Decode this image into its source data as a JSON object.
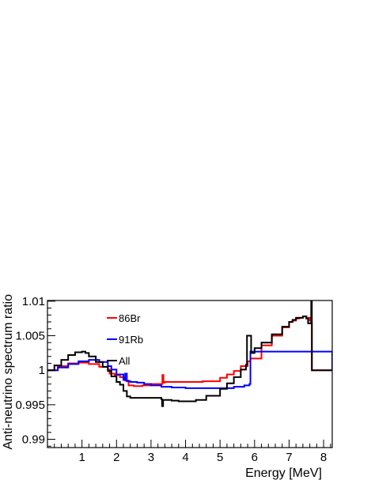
{
  "chart_data": {
    "type": "line",
    "title": "",
    "xlabel": "Energy [MeV]",
    "ylabel": "Anti-neutrino spectrum ratio",
    "xlim": [
      0,
      8.25
    ],
    "ylim": [
      0.9888,
      1.0101
    ],
    "x_ticks": [
      1,
      2,
      3,
      4,
      5,
      6,
      7,
      8
    ],
    "y_ticks": [
      0.99,
      0.995,
      1,
      1.005,
      1.01
    ],
    "x_tick_labels": [
      "1",
      "2",
      "3",
      "4",
      "5",
      "6",
      "7",
      "8"
    ],
    "y_tick_labels": [
      "0.99",
      "0.995",
      "1",
      "1.005",
      "1.01"
    ],
    "grid": false,
    "legend_position": "top-left",
    "series": [
      {
        "name": "86Br",
        "color": "#ff0000",
        "x": [
          0.0,
          0.3,
          0.6,
          0.9,
          1.2,
          1.5,
          1.75,
          1.8,
          1.95,
          2.1,
          2.25,
          2.35,
          2.5,
          2.75,
          3.0,
          3.3,
          3.33,
          3.36,
          3.4,
          3.6,
          4.0,
          4.5,
          5.0,
          5.2,
          5.4,
          5.6,
          5.8,
          5.88,
          5.92,
          6.2,
          6.5,
          6.8,
          7.0,
          7.1,
          7.2,
          7.3,
          7.4,
          7.5,
          7.6,
          7.65,
          7.66,
          8.25
        ],
        "y": [
          1.0,
          1.0006,
          1.001,
          1.0011,
          1.0009,
          1.0005,
          1.0001,
          0.9995,
          0.9993,
          0.999,
          0.9985,
          0.9978,
          0.9977,
          0.9978,
          0.998,
          0.998,
          0.9993,
          0.9982,
          0.9983,
          0.9983,
          0.9983,
          0.9984,
          0.9989,
          0.9994,
          0.9999,
          1.0006,
          1.0013,
          1.0017,
          1.0017,
          1.0036,
          1.005,
          1.0062,
          1.007,
          1.0072,
          1.0075,
          1.0076,
          1.0078,
          1.0076,
          1.0072,
          1.0068,
          1.0,
          1.0
        ]
      },
      {
        "name": "91Rb",
        "color": "#0000ff",
        "x": [
          0.0,
          0.3,
          0.6,
          0.9,
          1.2,
          1.5,
          1.75,
          1.85,
          2.0,
          2.2,
          2.25,
          2.3,
          2.4,
          2.6,
          2.8,
          3.0,
          3.3,
          3.6,
          4.0,
          4.5,
          5.0,
          5.4,
          5.7,
          5.85,
          5.88,
          8.25
        ],
        "y": [
          1.0,
          1.0004,
          1.0009,
          1.0013,
          1.0015,
          1.0012,
          1.0006,
          1.0001,
          0.9994,
          0.9986,
          0.9995,
          0.9984,
          0.9983,
          0.9982,
          0.998,
          0.9978,
          0.9976,
          0.9975,
          0.9974,
          0.9974,
          0.9974,
          0.9976,
          0.9978,
          0.998,
          1.0027,
          1.0
        ]
      },
      {
        "name": "All",
        "color": "#000000",
        "x": [
          0.0,
          0.2,
          0.4,
          0.6,
          0.8,
          1.0,
          1.1,
          1.2,
          1.4,
          1.6,
          1.75,
          1.85,
          2.0,
          2.1,
          2.2,
          2.3,
          2.4,
          2.6,
          3.0,
          3.3,
          3.32,
          3.35,
          3.4,
          3.6,
          3.8,
          4.0,
          4.3,
          4.6,
          5.0,
          5.2,
          5.4,
          5.6,
          5.75,
          5.78,
          5.87,
          5.9,
          6.0,
          6.2,
          6.5,
          6.8,
          7.0,
          7.1,
          7.2,
          7.3,
          7.4,
          7.5,
          7.55,
          7.62,
          7.64,
          7.66,
          8.25
        ],
        "y": [
          1.0,
          1.0007,
          1.0015,
          1.0022,
          1.0026,
          1.0027,
          1.0025,
          1.002,
          1.0012,
          1.0005,
          0.9999,
          0.9991,
          0.9983,
          0.9979,
          0.997,
          0.9962,
          0.996,
          0.996,
          0.996,
          0.9958,
          0.9948,
          0.9957,
          0.9957,
          0.9956,
          0.9955,
          0.9955,
          0.9957,
          0.9963,
          0.9973,
          0.9981,
          0.999,
          1.0001,
          1.0008,
          1.005,
          1.005,
          1.0025,
          1.0032,
          1.004,
          1.0052,
          1.0063,
          1.007,
          1.0073,
          1.0076,
          1.0076,
          1.0078,
          1.0075,
          1.0068,
          1.0068,
          1.0102,
          1.0,
          1.0
        ]
      }
    ]
  }
}
